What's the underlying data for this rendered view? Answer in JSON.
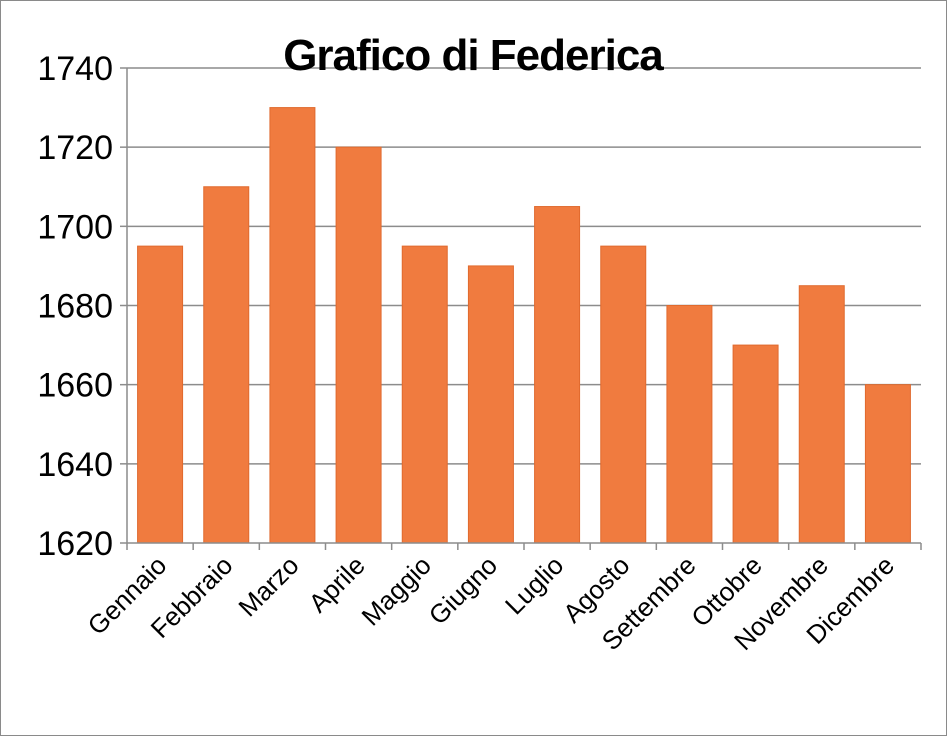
{
  "chart_data": {
    "type": "bar",
    "title": "Grafico di Federica",
    "xlabel": "",
    "ylabel": "",
    "categories": [
      "Gennaio",
      "Febbraio",
      "Marzo",
      "Aprile",
      "Maggio",
      "Giugno",
      "Luglio",
      "Agosto",
      "Settembre",
      "Ottobre",
      "Novembre",
      "Dicembre"
    ],
    "values": [
      1695,
      1710,
      1730,
      1720,
      1695,
      1690,
      1705,
      1695,
      1680,
      1670,
      1685,
      1660
    ],
    "ylim": [
      1620,
      1740
    ],
    "yticks": [
      "1620",
      "1640",
      "1660",
      "1680",
      "1700",
      "1720",
      "1740"
    ],
    "grid": true,
    "legend": "none",
    "bar_color": "#F07B3F",
    "bar_border_color": "#E06A2E",
    "grid_color": "#8C8C8C",
    "axis_color": "#8C8C8C"
  }
}
